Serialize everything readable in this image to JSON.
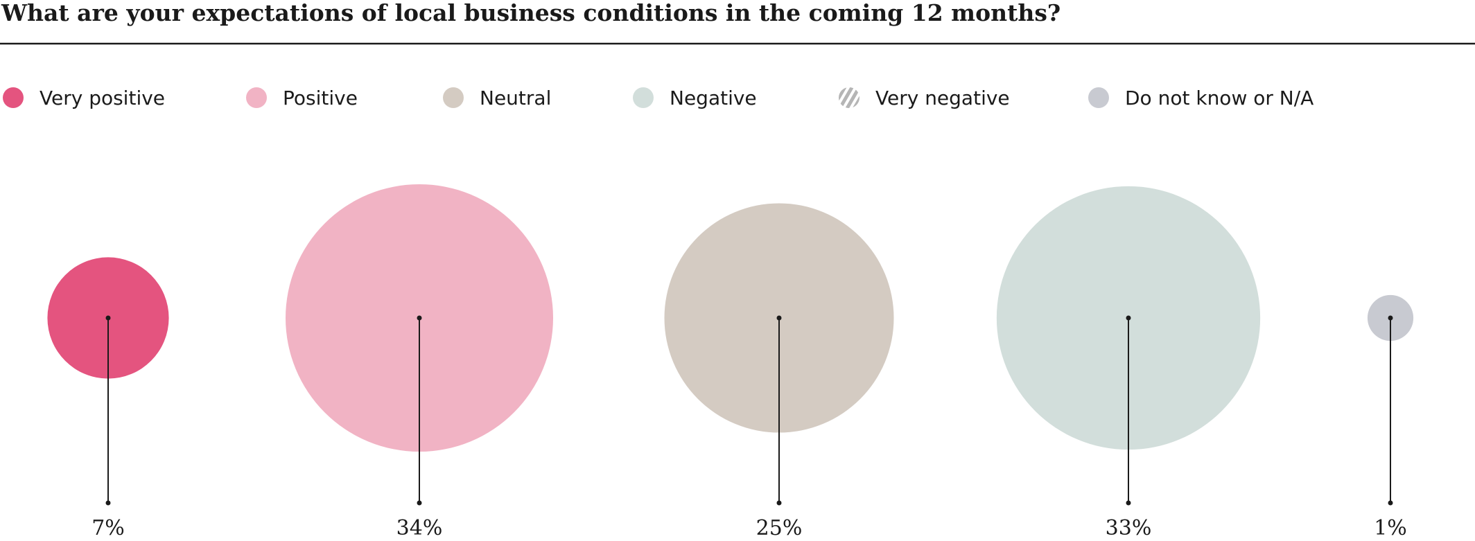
{
  "chart_data": {
    "type": "bubble",
    "title": "What are your expectations of local business conditions in the coming 12 months?",
    "categories": [
      "Very positive",
      "Positive",
      "Neutral",
      "Negative",
      "Very negative",
      "Do not know or N/A"
    ],
    "values": [
      7,
      34,
      25,
      33,
      null,
      1
    ],
    "value_labels": [
      "7%",
      "34%",
      "25%",
      "33%",
      null,
      "1%"
    ],
    "colors": [
      "#e4547f",
      "#f1b3c4",
      "#d4cbc2",
      "#d2dedb",
      "#b5b5b5",
      "#c8cad1"
    ],
    "marker_styles": [
      "solid",
      "solid",
      "solid",
      "solid",
      "striped",
      "solid"
    ]
  }
}
